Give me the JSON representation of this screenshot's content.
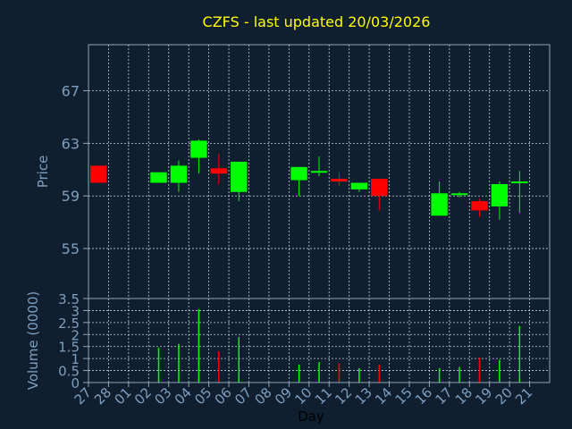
{
  "chart_data": {
    "type": "candlestick",
    "title": "CZFS - last updated 20/03/2026",
    "xlabel": "Day",
    "x": [
      "27",
      "28",
      "01",
      "02",
      "03",
      "04",
      "05",
      "06",
      "07",
      "08",
      "09",
      "10",
      "11",
      "12",
      "13",
      "14",
      "15",
      "16",
      "17",
      "18",
      "19",
      "20",
      "21"
    ],
    "price_panel": {
      "ylabel": "Price",
      "ylim": [
        51.2,
        70.5
      ],
      "yticks": [
        55,
        59,
        63,
        67
      ],
      "grid": true,
      "candles": [
        {
          "x": "27",
          "open": 61.3,
          "high": 61.3,
          "low": 60.0,
          "close": 60.0
        },
        {
          "x": "02",
          "open": 60.0,
          "high": 60.8,
          "low": 60.0,
          "close": 60.8
        },
        {
          "x": "03",
          "open": 60.0,
          "high": 61.7,
          "low": 59.3,
          "close": 61.3
        },
        {
          "x": "04",
          "open": 61.9,
          "high": 63.3,
          "low": 60.7,
          "close": 63.2
        },
        {
          "x": "05",
          "open": 61.1,
          "high": 62.2,
          "low": 59.9,
          "close": 60.7
        },
        {
          "x": "06",
          "open": 59.3,
          "high": 61.6,
          "low": 58.6,
          "close": 61.6
        },
        {
          "x": "09",
          "open": 60.2,
          "high": 61.2,
          "low": 59.0,
          "close": 61.2
        },
        {
          "x": "10",
          "open": 60.8,
          "high": 62.0,
          "low": 60.5,
          "close": 60.9
        },
        {
          "x": "11",
          "open": 60.3,
          "high": 60.8,
          "low": 59.8,
          "close": 60.1
        },
        {
          "x": "12",
          "open": 59.5,
          "high": 60.0,
          "low": 59.3,
          "close": 60.0
        },
        {
          "x": "13",
          "open": 60.3,
          "high": 60.3,
          "low": 57.9,
          "close": 59.0
        },
        {
          "x": "16",
          "open": 57.5,
          "high": 60.1,
          "low": 57.5,
          "close": 59.2
        },
        {
          "x": "17",
          "open": 59.1,
          "high": 59.3,
          "low": 58.9,
          "close": 59.2
        },
        {
          "x": "18",
          "open": 58.6,
          "high": 58.8,
          "low": 57.4,
          "close": 57.9
        },
        {
          "x": "19",
          "open": 58.2,
          "high": 60.1,
          "low": 57.2,
          "close": 59.9
        },
        {
          "x": "20",
          "open": 60.0,
          "high": 60.9,
          "low": 57.7,
          "close": 60.1
        }
      ]
    },
    "volume_panel": {
      "ylabel": "Volume (0000)",
      "ylim": [
        0,
        3.5
      ],
      "yticks": [
        0,
        0.5,
        1,
        1.5,
        2,
        2.5,
        3,
        3.5
      ],
      "ytick_labels": [
        "0",
        "0.5",
        "1",
        "1.5",
        "2",
        "2.5",
        "3",
        "3.5"
      ],
      "bars": [
        {
          "x": "02",
          "value": 1.45,
          "dir": "up"
        },
        {
          "x": "03",
          "value": 1.6,
          "dir": "up"
        },
        {
          "x": "04",
          "value": 3.05,
          "dir": "up"
        },
        {
          "x": "05",
          "value": 1.3,
          "dir": "down"
        },
        {
          "x": "06",
          "value": 1.9,
          "dir": "up"
        },
        {
          "x": "09",
          "value": 0.75,
          "dir": "up"
        },
        {
          "x": "10",
          "value": 0.85,
          "dir": "up"
        },
        {
          "x": "11",
          "value": 0.8,
          "dir": "down"
        },
        {
          "x": "12",
          "value": 0.6,
          "dir": "up"
        },
        {
          "x": "13",
          "value": 0.75,
          "dir": "down"
        },
        {
          "x": "16",
          "value": 0.6,
          "dir": "up"
        },
        {
          "x": "17",
          "value": 0.65,
          "dir": "up"
        },
        {
          "x": "18",
          "value": 1.05,
          "dir": "down"
        },
        {
          "x": "19",
          "value": 0.95,
          "dir": "up"
        },
        {
          "x": "20",
          "value": 2.35,
          "dir": "up"
        }
      ]
    },
    "colors": {
      "background": "#0f1f30",
      "title": "#ffff00",
      "axis_text": "#7f9fbf",
      "axis_line": "#8fa5bd",
      "grid": "#c8d0dc",
      "up": "#00ff00",
      "down": "#ff0000"
    }
  }
}
